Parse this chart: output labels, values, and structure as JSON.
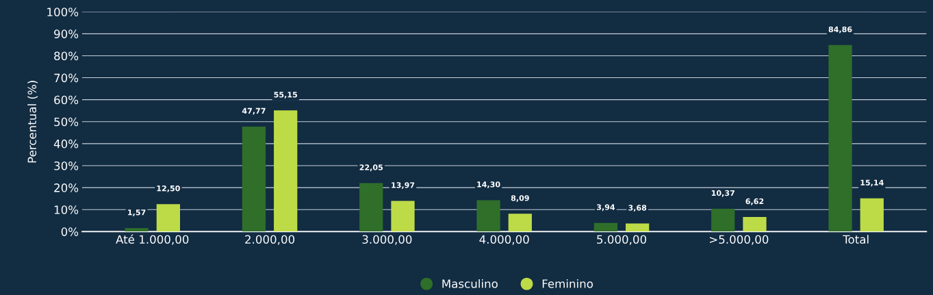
{
  "chart_data": {
    "type": "bar",
    "ylabel": "Percentual (%)",
    "categories": [
      "Até 1.000,00",
      "2.000,00",
      "3.000,00",
      "4.000,00",
      "5.000,00",
      ">5.000,00",
      "Total"
    ],
    "series": [
      {
        "name": "Masculino",
        "color": "#2f6f2a",
        "values": [
          1.57,
          47.77,
          22.05,
          14.3,
          3.94,
          10.37,
          84.86
        ],
        "value_labels": [
          "1,57",
          "47,77",
          "22,05",
          "14,30",
          "3,94",
          "10,37",
          "84,86"
        ]
      },
      {
        "name": "Feminino",
        "color": "#bddb47",
        "values": [
          12.5,
          55.15,
          13.97,
          8.09,
          3.68,
          6.62,
          15.14
        ],
        "value_labels": [
          "12,50",
          "55,15",
          "13,97",
          "8,09",
          "3,68",
          "6,62",
          "15,14"
        ]
      }
    ],
    "ylim": [
      0,
      100
    ],
    "yticks": [
      {
        "value": 0,
        "label": "0%"
      },
      {
        "value": 10,
        "label": "10%"
      },
      {
        "value": 20,
        "label": "20%"
      },
      {
        "value": 30,
        "label": "30%"
      },
      {
        "value": 40,
        "label": "40%"
      },
      {
        "value": 50,
        "label": "50%"
      },
      {
        "value": 60,
        "label": "60%"
      },
      {
        "value": 70,
        "label": "70%"
      },
      {
        "value": 80,
        "label": "80%"
      },
      {
        "value": 90,
        "label": "90%"
      },
      {
        "value": 100,
        "label": "100%"
      }
    ],
    "grid": "y",
    "legend": "bottom",
    "marker": "circle"
  }
}
